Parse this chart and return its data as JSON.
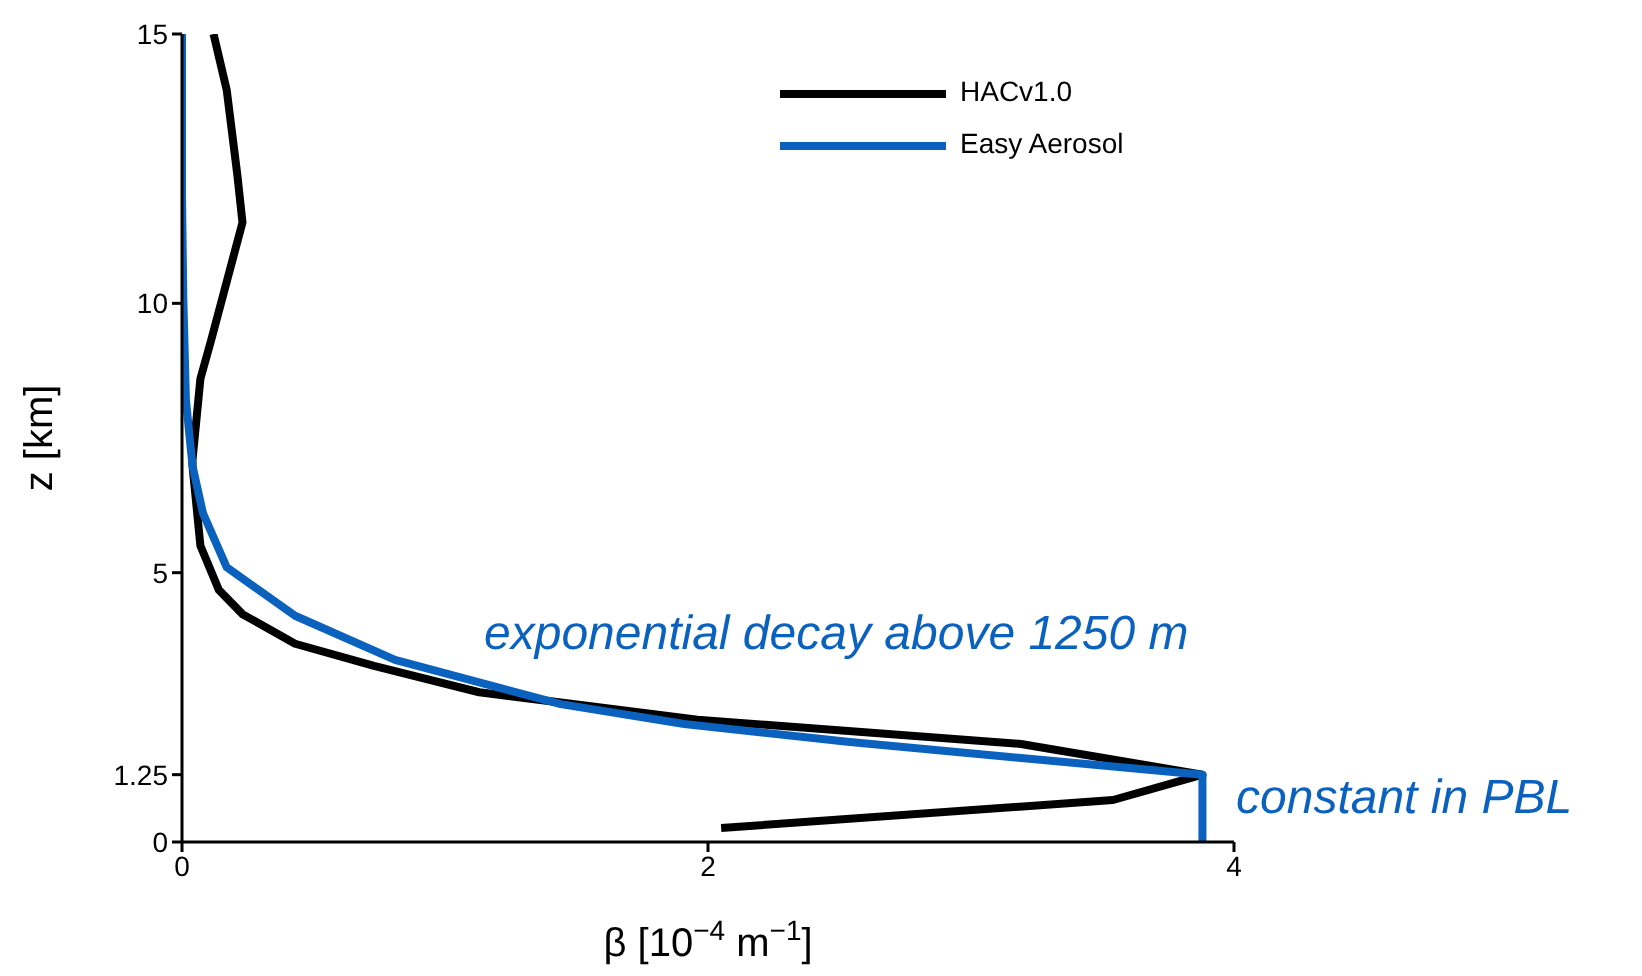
{
  "chart_data": {
    "type": "line",
    "xlabel": "β [10$^{−4}$ m$^{−1}$]",
    "ylabel": "z [km]",
    "xlim": [
      0,
      4
    ],
    "xticks": [
      0,
      2,
      4
    ],
    "ylim": [
      0,
      15
    ],
    "yticks": [
      0,
      1.25,
      5,
      10,
      15
    ],
    "grid": false,
    "legend": "top right",
    "marker": "none",
    "line_style": "solid",
    "series": [
      {
        "name": "HACv1.0",
        "color": "#000000",
        "x": [
          2.05,
          3.54,
          3.88,
          3.19,
          1.96,
          1.13,
          0.73,
          0.43,
          0.23,
          0.14,
          0.07,
          0.04,
          0.04,
          0.07,
          0.11,
          0.17,
          0.23,
          0.21,
          0.17,
          0.12
        ],
        "values": [
          0.26,
          0.78,
          1.25,
          1.82,
          2.27,
          2.78,
          3.27,
          3.68,
          4.23,
          4.68,
          5.5,
          6.98,
          7.1,
          8.6,
          9.3,
          10.4,
          11.5,
          12.4,
          13.96,
          15
        ]
      },
      {
        "name": "Easy Aerosol",
        "color": "#0a62be",
        "x": [
          3.88,
          3.88,
          3.19,
          2.53,
          1.91,
          1.44,
          0.81,
          0.43,
          0.17,
          0.08,
          0.04,
          0.015,
          0.005,
          0,
          0
        ],
        "values": [
          0,
          1.25,
          1.56,
          1.86,
          2.19,
          2.56,
          3.38,
          4.2,
          5.1,
          6.1,
          6.98,
          8.2,
          10.1,
          12,
          15
        ]
      }
    ],
    "annotations": [
      "exponential decay above 1250 m",
      "constant in PBL"
    ]
  }
}
